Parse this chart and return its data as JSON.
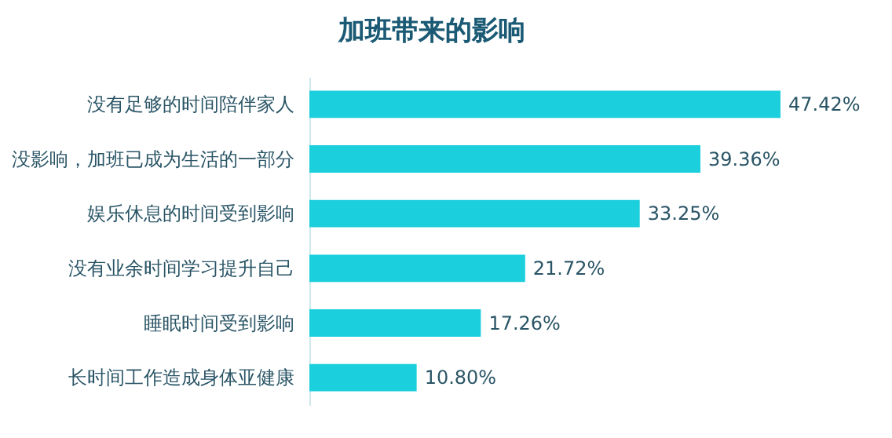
{
  "chart_data": {
    "type": "bar",
    "orientation": "horizontal",
    "title": "加班带来的影响",
    "categories": [
      "没有足够的时间陪伴家人",
      "没影响，加班已成为生活的一部分",
      "娱乐休息的时间受到影响",
      "没有业余时间学习提升自己",
      "睡眠时间受到影响",
      "长时间工作造成身体亚健康"
    ],
    "values": [
      47.42,
      39.36,
      33.25,
      21.72,
      17.26,
      10.8
    ],
    "value_labels": [
      "47.42%",
      "39.36%",
      "33.25%",
      "21.72%",
      "17.26%",
      "10.80%"
    ],
    "color": "#1ccfdc",
    "tick_labels": "y"
  }
}
